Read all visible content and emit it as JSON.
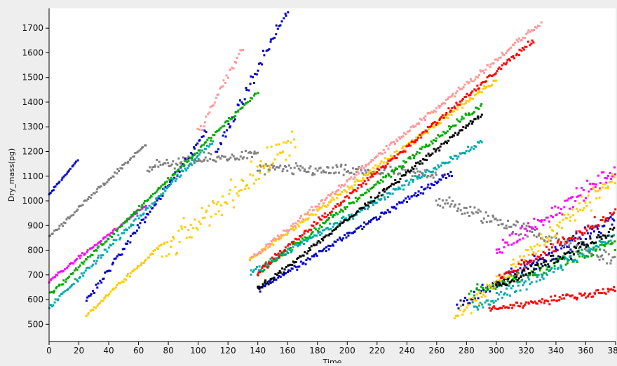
{
  "chart_data": {
    "type": "scatter",
    "title": "",
    "xlabel": "Time",
    "ylabel": "Dry_mass(pg)",
    "xlim": [
      0,
      380
    ],
    "ylim": [
      430,
      1780
    ],
    "x_ticks": [
      0,
      20,
      40,
      60,
      80,
      100,
      120,
      140,
      160,
      180,
      200,
      220,
      240,
      260,
      280,
      300,
      320,
      340,
      360,
      380
    ],
    "y_ticks": [
      500,
      600,
      700,
      800,
      900,
      1000,
      1100,
      1200,
      1300,
      1400,
      1500,
      1600,
      1700
    ],
    "grid": false,
    "legend": "none",
    "background": "#ffffff",
    "series": [
      {
        "color": "#0000cc",
        "segments": [
          {
            "x": [
              0,
              19
            ],
            "y": [
              1025,
              1165
            ],
            "noise": 5
          },
          {
            "x": [
              25,
              105
            ],
            "y": [
              590,
              1280
            ],
            "noise": 20
          },
          {
            "x": [
              112,
              160
            ],
            "y": [
              1200,
              1770
            ],
            "noise": 40
          },
          {
            "x": [
              140,
              270
            ],
            "y": [
              640,
              1115
            ],
            "noise": 18
          },
          {
            "x": [
              274,
              380
            ],
            "y": [
              580,
              930
            ],
            "noise": 40
          }
        ]
      },
      {
        "color": "#808080",
        "segments": [
          {
            "x": [
              0,
              65
            ],
            "y": [
              855,
              1230
            ],
            "noise": 12
          },
          {
            "x": [
              66,
              140
            ],
            "y": [
              1140,
              1190
            ],
            "noise": 30
          },
          {
            "x": [
              140,
              260
            ],
            "y": [
              1130,
              1110
            ],
            "noise": 35
          },
          {
            "x": [
              260,
              380
            ],
            "y": [
              1000,
              760
            ],
            "noise": 45
          }
        ]
      },
      {
        "color": "#ff00ff",
        "segments": [
          {
            "x": [
              0,
              65
            ],
            "y": [
              675,
              980
            ],
            "noise": 10
          },
          {
            "x": [
              300,
              380
            ],
            "y": [
              800,
              1120
            ],
            "noise": 50
          }
        ]
      },
      {
        "color": "#00aa00",
        "segments": [
          {
            "x": [
              0,
              140
            ],
            "y": [
              615,
              1440
            ],
            "noise": 12
          },
          {
            "x": [
              140,
              290
            ],
            "y": [
              705,
              1390
            ],
            "noise": 18
          },
          {
            "x": [
              282,
              380
            ],
            "y": [
              620,
              830
            ],
            "noise": 40
          }
        ]
      },
      {
        "color": "#00aaaa",
        "segments": [
          {
            "x": [
              0,
              110
            ],
            "y": [
              565,
              1240
            ],
            "noise": 15
          },
          {
            "x": [
              135,
              290
            ],
            "y": [
              710,
              1240
            ],
            "noise": 20
          },
          {
            "x": [
              285,
              380
            ],
            "y": [
              560,
              860
            ],
            "noise": 40
          }
        ]
      },
      {
        "color": "#ffcc00",
        "segments": [
          {
            "x": [
              25,
              75
            ],
            "y": [
              535,
              820
            ],
            "noise": 10
          },
          {
            "x": [
              75,
              165
            ],
            "y": [
              780,
              1250
            ],
            "noise": 80
          },
          {
            "x": [
              135,
              300
            ],
            "y": [
              760,
              1490
            ],
            "noise": 18
          },
          {
            "x": [
              272,
              380
            ],
            "y": [
              520,
              1100
            ],
            "noise": 60
          }
        ]
      },
      {
        "color": "#ff9999",
        "segments": [
          {
            "x": [
              100,
              130
            ],
            "y": [
              1280,
              1620
            ],
            "noise": 30
          },
          {
            "x": [
              135,
              330
            ],
            "y": [
              760,
              1720
            ],
            "noise": 18
          }
        ]
      },
      {
        "color": "#ff0000",
        "segments": [
          {
            "x": [
              140,
              325
            ],
            "y": [
              710,
              1650
            ],
            "noise": 18
          },
          {
            "x": [
              295,
              380
            ],
            "y": [
              560,
              640
            ],
            "noise": 20
          },
          {
            "x": [
              300,
              380
            ],
            "y": [
              680,
              950
            ],
            "noise": 35
          }
        ]
      },
      {
        "color": "#000000",
        "segments": [
          {
            "x": [
              140,
              290
            ],
            "y": [
              640,
              1350
            ],
            "noise": 15
          },
          {
            "x": [
              300,
              380
            ],
            "y": [
              650,
              880
            ],
            "noise": 30
          }
        ]
      }
    ]
  }
}
